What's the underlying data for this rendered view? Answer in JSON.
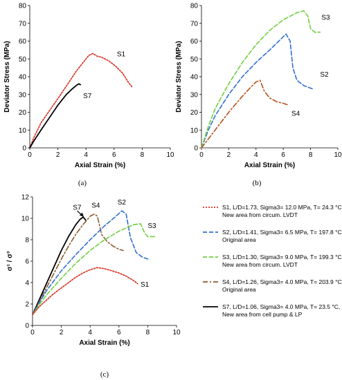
{
  "chart_data": [
    {
      "panel": "(a)",
      "type": "line",
      "xlabel": "Axial Strain (%)",
      "ylabel": "Deviator Stress (MPa)",
      "xlim": [
        0,
        10
      ],
      "ylim": [
        0,
        80
      ],
      "xticks": [
        "0",
        "2",
        "4",
        "6",
        "8",
        "10"
      ],
      "yticks": [
        "0",
        "10",
        "20",
        "30",
        "40",
        "50",
        "60",
        "70",
        "80"
      ],
      "series": [
        {
          "name": "S1",
          "color": "#d62b1e",
          "style": "dotted",
          "x": [
            0,
            0.3,
            0.8,
            1.5,
            2.2,
            2.8,
            3.3,
            3.8,
            4.2,
            4.5,
            4.8,
            5.1,
            5.6,
            6.1,
            6.6,
            7.0,
            7.3
          ],
          "y": [
            0,
            6,
            14,
            22,
            30,
            37,
            43,
            48,
            52,
            53,
            51.5,
            51,
            49,
            46,
            42,
            37,
            34
          ]
        },
        {
          "name": "S7",
          "color": "#000000",
          "style": "solid",
          "x": [
            0,
            0.3,
            0.8,
            1.4,
            2.0,
            2.6,
            3.0,
            3.3,
            3.5,
            3.6
          ],
          "y": [
            0,
            4,
            10,
            17,
            24,
            30,
            33,
            35,
            36,
            35.5
          ]
        }
      ],
      "labels": [
        {
          "text": "S1",
          "x": 6.2,
          "y": 51.5
        },
        {
          "text": "S7",
          "x": 3.8,
          "y": 28
        }
      ]
    },
    {
      "panel": "(b)",
      "type": "line",
      "xlabel": "Axial Strain (%)",
      "ylabel": "Deviator Stress (MPa)",
      "xlim": [
        0,
        10
      ],
      "ylim": [
        0,
        80
      ],
      "xticks": [
        "0",
        "2",
        "4",
        "6",
        "8",
        "10"
      ],
      "yticks": [
        "0",
        "10",
        "20",
        "30",
        "40",
        "50",
        "60",
        "70",
        "80"
      ],
      "series": [
        {
          "name": "S2",
          "color": "#2e6fd2",
          "style": "dashed",
          "x": [
            0,
            0.5,
            1.0,
            2.0,
            3.0,
            4.0,
            5.0,
            5.8,
            6.2,
            6.5,
            6.7,
            7.0,
            7.5,
            8.2
          ],
          "y": [
            0,
            10,
            18,
            30,
            40,
            48,
            55,
            61,
            64,
            60,
            45,
            38,
            35,
            33
          ]
        },
        {
          "name": "S3",
          "color": "#6fcf3f",
          "style": "dashed",
          "x": [
            0,
            0.5,
            1.0,
            2.0,
            3.0,
            4.0,
            5.0,
            6.0,
            6.5,
            7.0,
            7.5,
            7.8,
            8.0,
            8.3,
            8.7
          ],
          "y": [
            0,
            12,
            22,
            36,
            48,
            58,
            66,
            72,
            74,
            76,
            77,
            74,
            67,
            65,
            65
          ]
        },
        {
          "name": "S4",
          "color": "#b5501a",
          "style": "dashdot",
          "x": [
            0,
            0.5,
            1.0,
            2.0,
            3.0,
            3.6,
            4.0,
            4.3,
            4.6,
            5.0,
            5.5,
            6.0,
            6.4
          ],
          "y": [
            0,
            5,
            10,
            20,
            29,
            34,
            37,
            38,
            32,
            28,
            26,
            25,
            24
          ]
        }
      ],
      "labels": [
        {
          "text": "S3",
          "x": 8.8,
          "y": 72
        },
        {
          "text": "S2",
          "x": 8.7,
          "y": 40
        },
        {
          "text": "S4",
          "x": 6.6,
          "y": 18
        }
      ]
    },
    {
      "panel": "(c)",
      "type": "line",
      "xlabel": "Axial Strain (%)",
      "ylabel": "σ¹ / σ³",
      "xlim": [
        0,
        10
      ],
      "ylim": [
        0,
        12
      ],
      "xticks": [
        "0",
        "2",
        "4",
        "6",
        "8",
        "10"
      ],
      "yticks": [
        "0",
        "2",
        "4",
        "6",
        "8",
        "10",
        "12"
      ],
      "series": [
        {
          "name": "S7",
          "color": "#000000",
          "style": "solid",
          "x": [
            0,
            0.5,
            1.0,
            1.5,
            2.0,
            2.5,
            3.0,
            3.3,
            3.5,
            3.6,
            3.7
          ],
          "y": [
            1,
            2.5,
            4,
            5.5,
            7,
            8.3,
            9.4,
            9.9,
            10.1,
            10.0,
            9.8
          ]
        },
        {
          "name": "S4",
          "color": "#8b5a2b",
          "style": "dashdot",
          "x": [
            0,
            0.5,
            1.0,
            1.5,
            2.0,
            2.5,
            3.0,
            3.5,
            4.0,
            4.3,
            4.5,
            4.8,
            5.2,
            5.6,
            6.0,
            6.3
          ],
          "y": [
            1,
            2.3,
            3.6,
            4.9,
            6.2,
            7.4,
            8.5,
            9.4,
            10.2,
            10.4,
            10.2,
            8.5,
            7.8,
            7.4,
            7.1,
            7.0
          ]
        },
        {
          "name": "S2",
          "color": "#2e6fd2",
          "style": "dashed",
          "x": [
            0,
            0.5,
            1.0,
            2.0,
            3.0,
            4.0,
            5.0,
            5.8,
            6.2,
            6.5,
            6.8,
            7.2,
            7.6,
            8.0
          ],
          "y": [
            1,
            2.2,
            3.3,
            5.1,
            6.6,
            8.0,
            9.3,
            10.2,
            10.7,
            10.4,
            8.2,
            6.8,
            6.4,
            6.2
          ]
        },
        {
          "name": "S3",
          "color": "#6fcf3f",
          "style": "dashed",
          "x": [
            0,
            0.5,
            1.0,
            2.0,
            3.0,
            4.0,
            5.0,
            6.0,
            6.5,
            7.0,
            7.5,
            7.8,
            8.0,
            8.5
          ],
          "y": [
            1,
            2.0,
            2.9,
            4.4,
            5.8,
            7.0,
            8.0,
            8.8,
            9.1,
            9.4,
            9.5,
            8.6,
            8.3,
            8.3
          ]
        },
        {
          "name": "S1",
          "color": "#d62b1e",
          "style": "dotted",
          "x": [
            0,
            0.5,
            1.0,
            1.5,
            2.0,
            2.5,
            3.0,
            3.5,
            4.0,
            4.5,
            5.0,
            5.5,
            6.0,
            6.5,
            7.0,
            7.3
          ],
          "y": [
            1,
            1.8,
            2.4,
            3.0,
            3.5,
            4.0,
            4.5,
            4.9,
            5.2,
            5.4,
            5.3,
            5.1,
            4.9,
            4.6,
            4.2,
            3.9
          ]
        }
      ],
      "labels": [
        {
          "text": "S7",
          "x": 2.8,
          "y": 10.8
        },
        {
          "text": "S4",
          "x": 4.1,
          "y": 11.0
        },
        {
          "text": "S2",
          "x": 5.9,
          "y": 11.3
        },
        {
          "text": "S3",
          "x": 8.0,
          "y": 9.1
        },
        {
          "text": "S1",
          "x": 7.5,
          "y": 3.6
        }
      ],
      "legend": [
        {
          "lines": [
            "S1, L/D=1.73, Sigma3= 12.0 MPa, T= 24.3 °C,",
            "New area from circum. LVDT"
          ],
          "color": "#d62b1e",
          "style": "dotted"
        },
        {
          "lines": [
            "S2, L/D=1.41, Sigma3= 6.5 MPa, T= 197.8 °C,",
            "Original area"
          ],
          "color": "#2e6fd2",
          "style": "dashed"
        },
        {
          "lines": [
            "S3, L/D=1.30, Sigma3= 9.0 MPa, T= 199.3 °C,",
            "New area from circum. LVDT"
          ],
          "color": "#6fcf3f",
          "style": "dashed"
        },
        {
          "lines": [
            "S4, L/D=1.26, Sigma3= 4.0 MPa, T= 203.9 °C,",
            "Original area"
          ],
          "color": "#8b5a2b",
          "style": "dashdot"
        },
        {
          "lines": [
            "S7, L/D=1.06, Sigma3= 4.0 MPa, T= 23.5 °C,",
            "New area from cell pump & LP"
          ],
          "color": "#000000",
          "style": "solid"
        }
      ]
    }
  ]
}
